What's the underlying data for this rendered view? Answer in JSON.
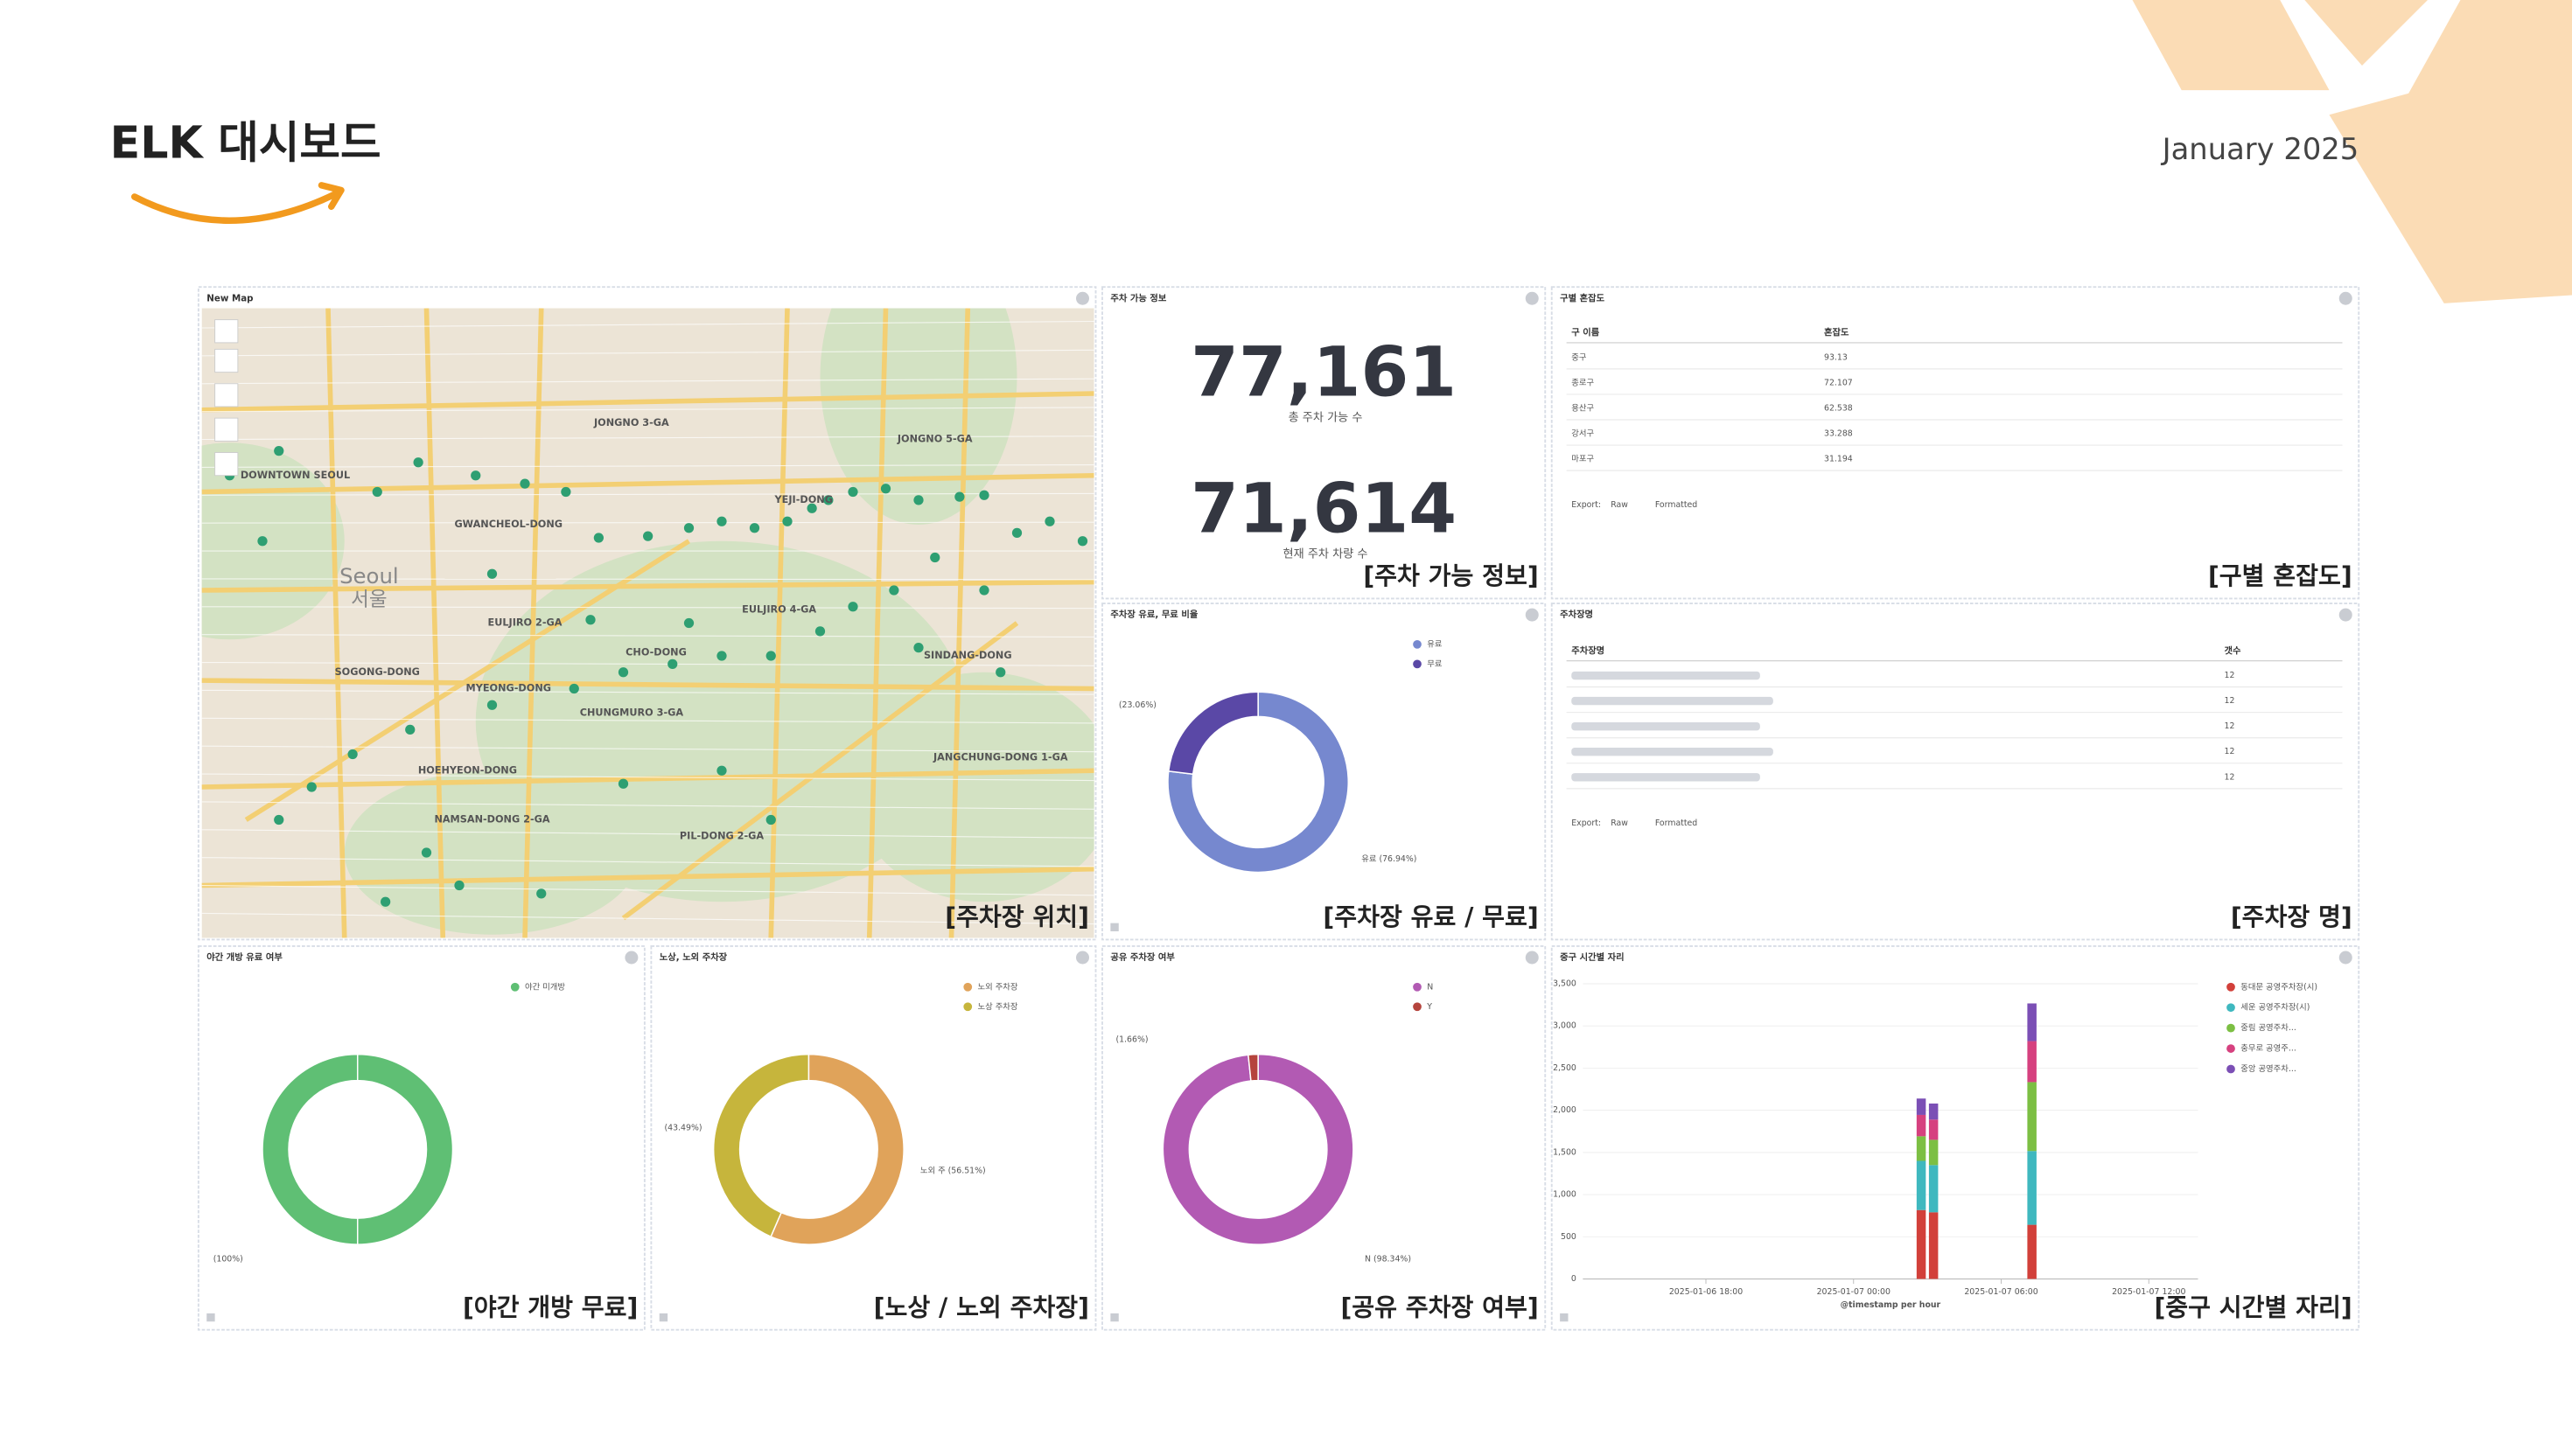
{
  "header": {
    "title": "ELK 대시보드",
    "date": "January  2025"
  },
  "map_panel": {
    "header": "New Map",
    "caption": "[주차장 위치]",
    "labels": [
      "Seoul",
      "서울",
      "JONGNO 3-GA",
      "EULJIRO 2-GA",
      "MYEONG-DONG",
      "HOEHYEON-DONG",
      "SOGONG-DONG",
      "CHO-DONG",
      "PIL-DONG 2-GA",
      "NAMSAN-DONG 2-GA",
      "JANGCHUNG-DONG 1-GA",
      "SINDANG-DONG",
      "DOWNTOWN SEOUL",
      "JONGNO 5-GA",
      "EULJIRO 4-GA",
      "CHUNGMURO 3-GA",
      "YEJI-DONG",
      "GWANCHEOL-DONG"
    ]
  },
  "stats_panel": {
    "header": "주차 가능 정보",
    "caption": "[주차 가능 정보]",
    "stats": [
      {
        "value": "77,161",
        "label": "총 주차 가능 수"
      },
      {
        "value": "71,614",
        "label": "현재 주차 차량 수"
      }
    ]
  },
  "district_panel": {
    "header": "구별 혼잡도",
    "caption": "[구별 혼잡도]",
    "columns": [
      "구 이름",
      "혼잡도"
    ],
    "rows": [
      [
        "중구",
        "93.13"
      ],
      [
        "종로구",
        "72.107"
      ],
      [
        "용산구",
        "62.538"
      ],
      [
        "강서구",
        "33.288"
      ],
      [
        "마포구",
        "31.194"
      ]
    ],
    "export": [
      "Export:",
      "Raw",
      "Formatted"
    ]
  },
  "names_panel": {
    "header": "주차장명",
    "caption": "[주차장 명]",
    "columns": [
      "주차장명",
      "갯수"
    ],
    "counts": [
      "12",
      "12",
      "12",
      "12",
      "12"
    ],
    "export": [
      "Export:",
      "Raw",
      "Formatted"
    ]
  },
  "chart_data": [
    {
      "type": "donut",
      "title": "주차장 유료, 무료 비율",
      "caption": "[주차장 유료 / 무료]",
      "categories": [
        "유료",
        "무료"
      ],
      "values": [
        76.94,
        23.06
      ],
      "value_labels": [
        "유료 (76.94%)",
        "(23.06%)"
      ],
      "colors": [
        "#7688cf",
        "#5a48a6"
      ]
    },
    {
      "type": "donut",
      "title": "야간 개방 유료 여부",
      "caption": "[야간 개방 무료]",
      "categories": [
        "야간 미개방"
      ],
      "values": [
        100
      ],
      "value_labels": [
        "(100%)"
      ],
      "colors": [
        "#5fbf74"
      ]
    },
    {
      "type": "donut",
      "title": "노상, 노외 주차장",
      "caption": "[노상 / 노외 주차장]",
      "categories": [
        "노외 주차장",
        "노상 주차장"
      ],
      "values": [
        56.51,
        43.49
      ],
      "value_labels": [
        "노외 주 (56.51%)",
        "(43.49%)"
      ],
      "colors": [
        "#e0a35a",
        "#c6b53c"
      ]
    },
    {
      "type": "donut",
      "title": "공유 주차장 여부",
      "caption": "[공유 주차장 여부]",
      "categories": [
        "N",
        "Y"
      ],
      "values": [
        98.34,
        1.66
      ],
      "value_labels": [
        "N (98.34%)",
        "(1.66%)"
      ],
      "colors": [
        "#b25ab3",
        "#b5443d"
      ]
    },
    {
      "type": "stacked_bar",
      "title": "중구 시간별 자리",
      "caption": "[중구 시간별 자리]",
      "x_label": "@timestamp per hour",
      "x": [
        "2025-01-07 02:45",
        "2025-01-07 03:15",
        "2025-01-07 07:15"
      ],
      "xlim": [
        "2025-01-06 13:00",
        "2025-01-07 14:00"
      ],
      "xticks": [
        "2025-01-06 18:00",
        "2025-01-07 00:00",
        "2025-01-07 06:00",
        "2025-01-07 12:00"
      ],
      "ylim": [
        0,
        3500
      ],
      "yticks": [
        0,
        500,
        {
          "value": 1000,
          "label": "1,000"
        },
        {
          "value": 1500,
          "label": "1,500"
        },
        {
          "value": 2000,
          "label": "2,000"
        },
        {
          "value": 2500,
          "label": "2,500"
        },
        {
          "value": 3000,
          "label": "3,000"
        },
        {
          "value": 3500,
          "label": "3,500"
        }
      ],
      "series": [
        {
          "name": "동대문 공영주차장(시)",
          "color": "#d2403a",
          "values": [
            817,
            790,
            642
          ]
        },
        {
          "name": "세운 공영주차장(시)",
          "color": "#3fb8bf",
          "values": [
            583,
            560,
            875
          ]
        },
        {
          "name": "중림 공영주차...",
          "color": "#7cbf43",
          "values": [
            292,
            300,
            817
          ]
        },
        {
          "name": "충무로 공영주...",
          "color": "#d6417f",
          "values": [
            253,
            240,
            486
          ]
        },
        {
          "name": "중앙 공영주차...",
          "color": "#7b4fb5",
          "values": [
            194,
            190,
            447
          ]
        }
      ]
    }
  ]
}
